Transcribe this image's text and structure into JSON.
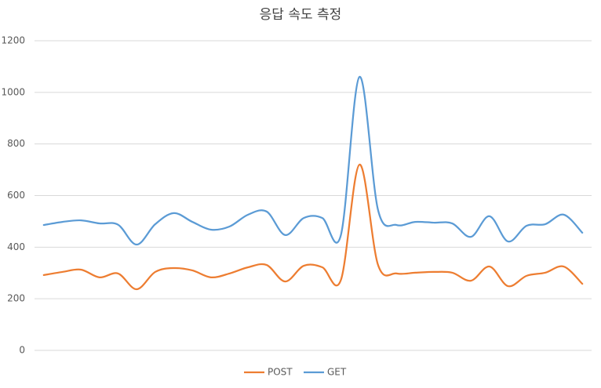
{
  "chart_data": {
    "type": "line",
    "title": "응답 속도 측정",
    "categories": [
      null,
      null,
      null,
      null,
      null,
      null,
      null,
      null,
      null,
      null,
      null,
      null,
      null,
      null,
      null,
      null,
      null,
      null,
      null,
      null,
      null,
      null,
      null,
      null,
      null,
      null,
      null,
      null,
      null,
      null
    ],
    "series": [
      {
        "name": "POST",
        "color": "#ed7d31",
        "values": [
          292,
          304,
          313,
          283,
          298,
          237,
          304,
          319,
          310,
          283,
          298,
          322,
          331,
          267,
          328,
          322,
          273,
          720,
          331,
          298,
          301,
          304,
          301,
          270,
          325,
          249,
          289,
          301,
          325,
          258
        ]
      },
      {
        "name": "GET",
        "color": "#5b9bd5",
        "values": [
          486,
          498,
          504,
          492,
          487,
          410,
          489,
          532,
          498,
          468,
          480,
          526,
          538,
          447,
          513,
          513,
          447,
          1060,
          544,
          486,
          498,
          495,
          492,
          440,
          520,
          422,
          483,
          489,
          526,
          456
        ]
      }
    ],
    "ylim": [
      0,
      1200
    ],
    "yticks": [
      0,
      200,
      400,
      600,
      800,
      1000,
      1200
    ],
    "grid": true,
    "smooth": true,
    "legend": "bottom"
  }
}
